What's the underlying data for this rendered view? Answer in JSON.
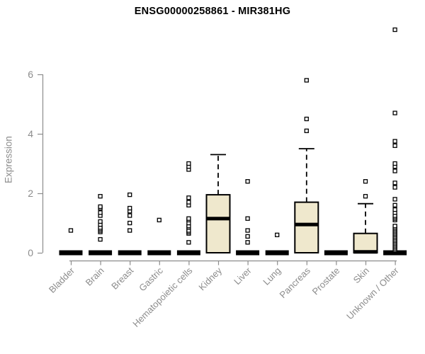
{
  "chart_data": {
    "type": "boxplot",
    "title": "ENSG00000258861 - MIR381HG",
    "ylabel": "Expression",
    "xlabel": "",
    "yticks": [
      0,
      2,
      4,
      6
    ],
    "ylim": [
      0,
      7.6
    ],
    "grid": false,
    "legend": false,
    "categories": [
      "Bladder",
      "Brain",
      "Breast",
      "Gastric",
      "Hematopoietic cells",
      "Kidney",
      "Liver",
      "Lung",
      "Pancreas",
      "Prostate",
      "Skin",
      "Unknown / Other"
    ],
    "boxes": [
      {
        "category": "Bladder",
        "q1": 0,
        "median": 0,
        "q3": 0,
        "whisker_low": 0,
        "whisker_high": 0,
        "outliers": [
          0.75
        ]
      },
      {
        "category": "Brain",
        "q1": 0,
        "median": 0,
        "q3": 0,
        "whisker_low": 0,
        "whisker_high": 0,
        "outliers": [
          0.45,
          0.7,
          0.75,
          0.8,
          0.85,
          0.95,
          1.05,
          1.25,
          1.35,
          1.5,
          1.55,
          1.9
        ]
      },
      {
        "category": "Breast",
        "q1": 0,
        "median": 0,
        "q3": 0,
        "whisker_low": 0,
        "whisker_high": 0,
        "outliers": [
          0.75,
          1.0,
          1.25,
          1.4,
          1.5,
          1.95
        ]
      },
      {
        "category": "Gastric",
        "q1": 0,
        "median": 0,
        "q3": 0,
        "whisker_low": 0,
        "whisker_high": 0,
        "outliers": [
          1.1
        ]
      },
      {
        "category": "Hematopoietic cells",
        "q1": 0,
        "median": 0,
        "q3": 0,
        "whisker_low": 0,
        "whisker_high": 0,
        "outliers": [
          0.35,
          0.65,
          0.7,
          0.75,
          0.85,
          0.9,
          1.0,
          1.1,
          1.15,
          1.6,
          1.7,
          1.85,
          2.8,
          2.9,
          3.0
        ]
      },
      {
        "category": "Kidney",
        "q1": 0,
        "median": 1.15,
        "q3": 1.95,
        "whisker_low": 0,
        "whisker_high": 3.3,
        "outliers": []
      },
      {
        "category": "Liver",
        "q1": 0,
        "median": 0,
        "q3": 0,
        "whisker_low": 0,
        "whisker_high": 0,
        "outliers": [
          0.35,
          0.55,
          0.75,
          1.15,
          2.4
        ]
      },
      {
        "category": "Lung",
        "q1": 0,
        "median": 0,
        "q3": 0,
        "whisker_low": 0,
        "whisker_high": 0,
        "outliers": [
          0.6
        ]
      },
      {
        "category": "Pancreas",
        "q1": 0,
        "median": 0.95,
        "q3": 1.7,
        "whisker_low": 0,
        "whisker_high": 3.5,
        "outliers": [
          4.1,
          4.5,
          5.8
        ]
      },
      {
        "category": "Prostate",
        "q1": 0,
        "median": 0,
        "q3": 0,
        "whisker_low": 0,
        "whisker_high": 0,
        "outliers": []
      },
      {
        "category": "Skin",
        "q1": 0,
        "median": 0.03,
        "q3": 0.65,
        "whisker_low": 0,
        "whisker_high": 1.65,
        "outliers": [
          1.9,
          2.4
        ]
      },
      {
        "category": "Unknown / Other",
        "q1": 0,
        "median": 0,
        "q3": 0,
        "whisker_low": 0,
        "whisker_high": 0,
        "outliers": [
          0.1,
          0.15,
          0.2,
          0.25,
          0.3,
          0.35,
          0.4,
          0.45,
          0.5,
          0.55,
          0.6,
          0.65,
          0.7,
          0.75,
          0.8,
          0.85,
          0.9,
          1.1,
          1.15,
          1.2,
          1.25,
          1.35,
          1.45,
          1.6,
          1.8,
          2.2,
          2.35,
          2.75,
          2.9,
          3.0,
          3.6,
          3.75,
          4.7,
          7.5
        ]
      }
    ],
    "colors": {
      "background": "#ffffff",
      "axis": "#8c8c8c",
      "tick_text": "#8c8c8c",
      "title_text": "#000000",
      "box_fill": "#efe8cd",
      "box_border": "#000000",
      "outlier_fill": "#ffffff",
      "outlier_border": "#000000"
    }
  }
}
